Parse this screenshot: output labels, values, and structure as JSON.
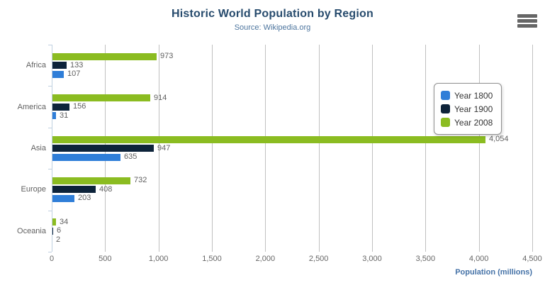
{
  "chart_data": {
    "type": "bar",
    "title": "Historic World Population by Region",
    "subtitle": "Source: Wikipedia.org",
    "categories": [
      "Africa",
      "America",
      "Asia",
      "Europe",
      "Oceania"
    ],
    "series": [
      {
        "name": "Year 1800",
        "color": "#2f7ed8",
        "values": [
          107,
          31,
          635,
          203,
          2
        ],
        "labels": [
          "107",
          "31",
          "635",
          "203",
          "2"
        ]
      },
      {
        "name": "Year 1900",
        "color": "#0d233a",
        "values": [
          133,
          156,
          947,
          408,
          6
        ],
        "labels": [
          "133",
          "156",
          "947",
          "408",
          "6"
        ]
      },
      {
        "name": "Year 2008",
        "color": "#8bbc21",
        "values": [
          973,
          914,
          4054,
          732,
          34
        ],
        "labels": [
          "973",
          "914",
          "4,054",
          "732",
          "34"
        ]
      }
    ],
    "bar_order_top_to_bottom": [
      "Year 2008",
      "Year 1900",
      "Year 1800"
    ],
    "xlabel": "Population (millions)",
    "xlim": [
      0,
      4500
    ],
    "tick_interval": 500,
    "tick_labels": [
      "0",
      "500",
      "1,000",
      "1,500",
      "2,000",
      "2,500",
      "3,000",
      "3,500",
      "4,000",
      "4,500"
    ],
    "grid": true,
    "legend_position": "right-middle"
  },
  "toolbar": {
    "context_menu_icon": "hamburger-icon"
  },
  "colors": {
    "title": "#274b6d",
    "subtitle": "#4d759e",
    "gridline": "#c0c0c0",
    "axis_line": "#c0d0e0",
    "data_label": "#606060",
    "category_label": "#606060",
    "tick_label": "#666666",
    "axis_title": "#4572a7",
    "legend_border": "#909090",
    "legend_text": "#333333",
    "menu_icon": "#666666",
    "background": "#ffffff"
  }
}
